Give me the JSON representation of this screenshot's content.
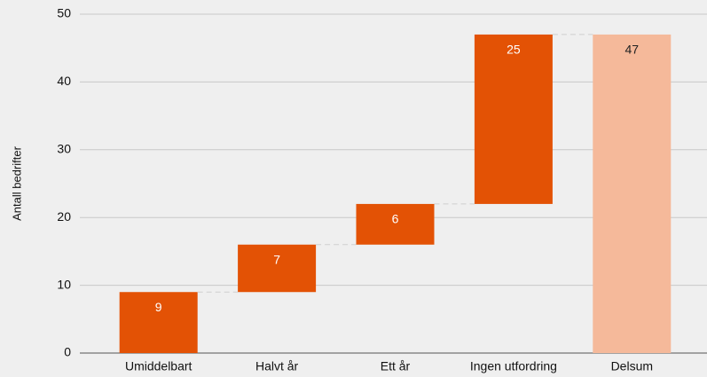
{
  "chart_data": {
    "type": "waterfall",
    "y_label": "Antall bedrifter",
    "categories": [
      "Umiddelbart",
      "Halvt år",
      "Ett år",
      "Ingen utfordring",
      "Delsum"
    ],
    "values": [
      9,
      7,
      6,
      25,
      47
    ],
    "is_total": [
      false,
      false,
      false,
      false,
      true
    ],
    "color": "#e35205",
    "total_color": "#f5b99a",
    "ylim": [
      0,
      50
    ],
    "yticks": [
      0,
      10,
      20,
      30,
      40,
      50
    ],
    "grid": true
  }
}
